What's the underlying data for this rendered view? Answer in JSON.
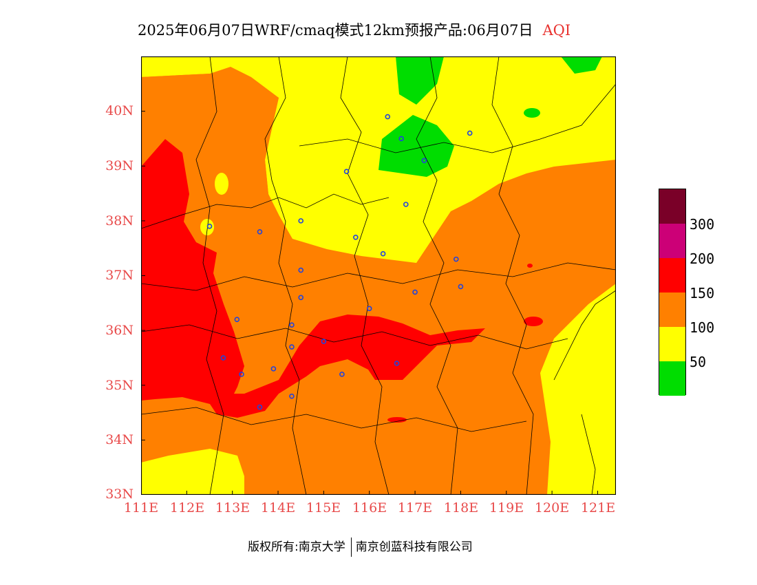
{
  "title": {
    "main": "2025年06月07日WRF/cmaq模式12km预报产品:06月07日",
    "variable": "AQI"
  },
  "axes": {
    "lat_labels": [
      "40N",
      "39N",
      "38N",
      "37N",
      "36N",
      "35N",
      "34N",
      "33N"
    ],
    "lon_labels": [
      "111E",
      "112E",
      "113E",
      "114E",
      "115E",
      "116E",
      "117E",
      "118E",
      "119E",
      "120E",
      "121E"
    ],
    "lon_range": [
      111,
      121.4
    ],
    "lat_range": [
      33,
      41
    ]
  },
  "legend": {
    "labels": [
      "300",
      "200",
      "150",
      "100",
      "50"
    ],
    "bands": [
      {
        "color": "#00dd00"
      },
      {
        "color": "#ffff00"
      },
      {
        "color": "#ff8000"
      },
      {
        "color": "#ff0000"
      },
      {
        "color": "#cc0077"
      },
      {
        "color": "#7a0028"
      }
    ]
  },
  "colors": {
    "good": "#00dd00",
    "moderate": "#ffff00",
    "unhealthy_sensitive": "#ff8000",
    "unhealthy": "#ff0000",
    "very_unhealthy": "#cc0077",
    "hazardous": "#7a0028",
    "station": "#2244dd",
    "tick_label": "#e84a4a"
  },
  "cities": [
    {
      "lon": 116.4,
      "lat": 39.9
    },
    {
      "lon": 116.7,
      "lat": 39.5
    },
    {
      "lon": 117.2,
      "lat": 39.1
    },
    {
      "lon": 118.2,
      "lat": 39.6
    },
    {
      "lon": 115.5,
      "lat": 38.9
    },
    {
      "lon": 116.8,
      "lat": 38.3
    },
    {
      "lon": 114.5,
      "lat": 38.0
    },
    {
      "lon": 113.6,
      "lat": 37.8
    },
    {
      "lon": 112.5,
      "lat": 37.9
    },
    {
      "lon": 115.7,
      "lat": 37.7
    },
    {
      "lon": 116.3,
      "lat": 37.4
    },
    {
      "lon": 117.9,
      "lat": 37.3
    },
    {
      "lon": 114.5,
      "lat": 37.1
    },
    {
      "lon": 118.0,
      "lat": 36.8
    },
    {
      "lon": 117.0,
      "lat": 36.7
    },
    {
      "lon": 114.5,
      "lat": 36.6
    },
    {
      "lon": 116.0,
      "lat": 36.4
    },
    {
      "lon": 113.1,
      "lat": 36.2
    },
    {
      "lon": 114.3,
      "lat": 36.1
    },
    {
      "lon": 114.3,
      "lat": 35.7
    },
    {
      "lon": 115.0,
      "lat": 35.8
    },
    {
      "lon": 112.8,
      "lat": 35.5
    },
    {
      "lon": 113.9,
      "lat": 35.3
    },
    {
      "lon": 113.2,
      "lat": 35.2
    },
    {
      "lon": 115.4,
      "lat": 35.2
    },
    {
      "lon": 116.6,
      "lat": 35.4
    },
    {
      "lon": 114.3,
      "lat": 34.8
    },
    {
      "lon": 113.6,
      "lat": 34.6
    }
  ],
  "footer": {
    "copyright": "版权所有:南京大学",
    "company": "南京创蓝科技有限公司"
  }
}
